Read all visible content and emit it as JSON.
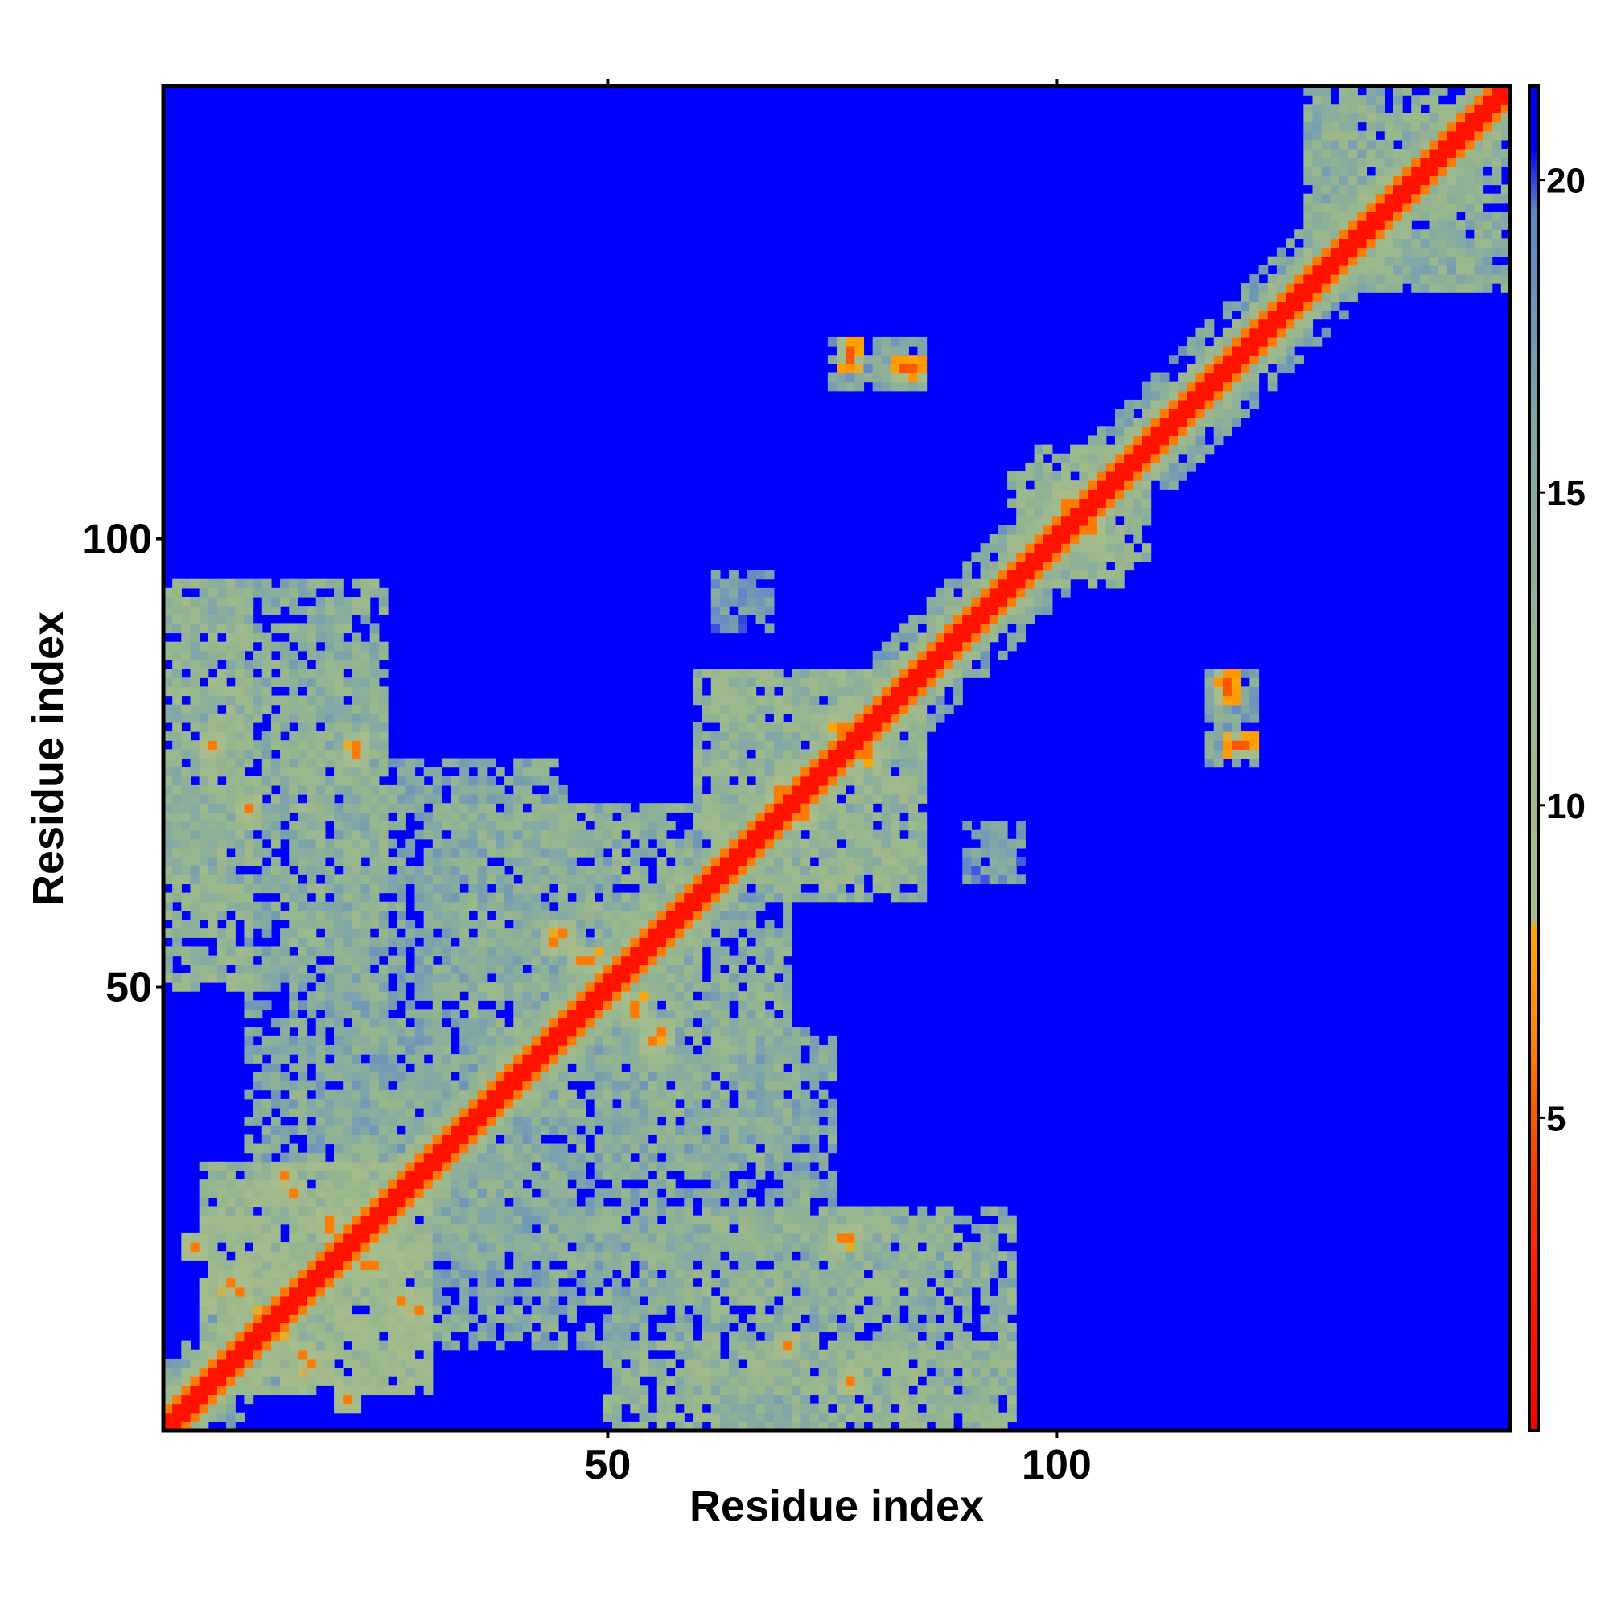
{
  "chart_data": {
    "type": "heatmap",
    "title": "",
    "xlabel": "Residue index",
    "ylabel": "Residue index",
    "n_residues": 150,
    "xlim": [
      0.5,
      150.5
    ],
    "ylim": [
      0.5,
      150.5
    ],
    "x_ticks": [
      50,
      100
    ],
    "x_tick_labels": [
      "50",
      "100"
    ],
    "y_ticks": [
      50,
      100
    ],
    "y_tick_labels": [
      "50",
      "100"
    ],
    "colorbar": {
      "range": [
        0,
        21.5
      ],
      "ticks": [
        5,
        10,
        15,
        20
      ],
      "tick_labels": [
        "5",
        "10",
        "15",
        "20"
      ],
      "color_stops": [
        {
          "value": 0,
          "color": "#ff0000"
        },
        {
          "value": 4,
          "color": "#ff3300"
        },
        {
          "value": 6.5,
          "color": "#ff8c00"
        },
        {
          "value": 8,
          "color": "#ffa500"
        },
        {
          "value": 8.2,
          "color": "#a9bd8c"
        },
        {
          "value": 12,
          "color": "#99b78d"
        },
        {
          "value": 16,
          "color": "#80a6a8"
        },
        {
          "value": 19.5,
          "color": "#5f86c9"
        },
        {
          "value": 20.5,
          "color": "#0000ff"
        },
        {
          "value": 21.5,
          "color": "#0000ff"
        }
      ]
    },
    "background_value": 21.5,
    "diagonal_band": {
      "width_residues": 4,
      "value": 1.5
    },
    "contact_regions": [
      {
        "i": [
          1,
          10
        ],
        "j": [
          50,
          95
        ],
        "value": 12
      },
      {
        "i": [
          15,
          25
        ],
        "j": [
          55,
          90
        ],
        "value": 13
      },
      {
        "i": [
          20,
          45
        ],
        "j": [
          25,
          75
        ],
        "value": 14
      },
      {
        "i": [
          35,
          60
        ],
        "j": [
          45,
          70
        ],
        "value": 13
      },
      {
        "i": [
          50,
          70
        ],
        "j": [
          30,
          50
        ],
        "value": 14
      },
      {
        "i": [
          60,
          95
        ],
        "j": [
          2,
          25
        ],
        "value": 13
      },
      {
        "i": [
          30,
          60
        ],
        "j": [
          10,
          25
        ],
        "value": 14
      },
      {
        "i": [
          5,
          30
        ],
        "j": [
          5,
          30
        ],
        "value": 11
      },
      {
        "i": [
          62,
          85
        ],
        "j": [
          60,
          85
        ],
        "value": 12
      },
      {
        "i": [
          98,
          108
        ],
        "j": [
          95,
          110
        ],
        "value": 12
      },
      {
        "i": [
          75,
          85
        ],
        "j": [
          117,
          122
        ],
        "value": 15
      },
      {
        "i": [
          117,
          122
        ],
        "j": [
          76,
          85
        ],
        "value": 15
      },
      {
        "i": [
          62,
          68
        ],
        "j": [
          91,
          95
        ],
        "value": 16
      },
      {
        "i": [
          90,
          96
        ],
        "j": [
          62,
          68
        ],
        "value": 16
      },
      {
        "i": [
          128,
          148
        ],
        "j": [
          128,
          150
        ],
        "value": 13
      }
    ],
    "close_contacts": [
      {
        "i": 4,
        "j": 21,
        "value": 6
      },
      {
        "i": 8,
        "j": 17,
        "value": 6
      },
      {
        "i": 12,
        "j": 13,
        "value": 5
      },
      {
        "i": 16,
        "j": 9,
        "value": 6
      },
      {
        "i": 14,
        "j": 29,
        "value": 6
      },
      {
        "i": 19,
        "j": 24,
        "value": 6
      },
      {
        "i": 23,
        "j": 19,
        "value": 6
      },
      {
        "i": 27,
        "j": 15,
        "value": 6
      },
      {
        "i": 45,
        "j": 56,
        "value": 6
      },
      {
        "i": 48,
        "j": 53,
        "value": 6
      },
      {
        "i": 53,
        "j": 47,
        "value": 6
      },
      {
        "i": 55,
        "j": 44,
        "value": 6
      },
      {
        "i": 69,
        "j": 72,
        "value": 6
      },
      {
        "i": 72,
        "j": 70,
        "value": 6
      },
      {
        "i": 76,
        "j": 78,
        "value": 6
      },
      {
        "i": 79,
        "j": 76,
        "value": 6
      },
      {
        "i": 101,
        "j": 104,
        "value": 6
      },
      {
        "i": 104,
        "j": 101,
        "value": 6
      },
      {
        "i": 77,
        "j": 120,
        "value": 5
      },
      {
        "i": 84,
        "j": 119,
        "value": 5
      },
      {
        "i": 119,
        "j": 83,
        "value": 5
      },
      {
        "i": 121,
        "j": 77,
        "value": 5
      },
      {
        "i": 70,
        "j": 10,
        "value": 6
      },
      {
        "i": 77,
        "j": 22,
        "value": 6
      },
      {
        "i": 6,
        "j": 77,
        "value": 6
      },
      {
        "i": 22,
        "j": 76,
        "value": 6
      }
    ]
  }
}
